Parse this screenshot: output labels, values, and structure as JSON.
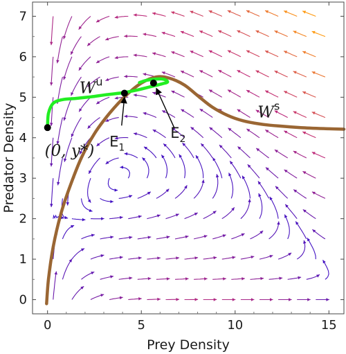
{
  "chart_data": {
    "type": "scatter",
    "xlabel": "Prey Density",
    "ylabel": "Predator Density",
    "xlim": [
      -0.8,
      15.8
    ],
    "ylim": [
      -0.35,
      7.35
    ],
    "x_ticks": [
      "0",
      "5",
      "10",
      "15"
    ],
    "y_ticks": [
      "0",
      "1",
      "2",
      "3",
      "4",
      "5",
      "6",
      "7"
    ],
    "grid": false,
    "colors": {
      "stable_manifold": "#9a6633",
      "unstable_manifold": "#22ee22",
      "field_low": "#3a10c8",
      "field_mid": "#c02a78",
      "field_high": "#ff9a10"
    },
    "points": [
      {
        "label": "(0, y*)",
        "x": 0,
        "y": 4.25
      },
      {
        "label": "E1",
        "x": 4.1,
        "y": 5.1
      },
      {
        "label": "E2",
        "x": 5.65,
        "y": 5.35
      }
    ],
    "series": [
      {
        "name": "W^s",
        "x": [
          -0.05,
          0.05,
          0.3,
          0.7,
          1.2,
          1.8,
          2.5,
          3.3,
          4.2,
          5.0,
          5.8,
          6.5,
          7.3,
          8.1,
          8.8,
          9.6,
          10.4,
          11.3,
          12.3,
          13.5,
          15.0,
          15.8
        ],
        "y": [
          -0.1,
          0.5,
          1.3,
          2.1,
          2.8,
          3.5,
          4.1,
          4.6,
          5.05,
          5.35,
          5.5,
          5.47,
          5.3,
          5.0,
          4.75,
          4.55,
          4.42,
          4.34,
          4.29,
          4.25,
          4.22,
          4.21
        ]
      },
      {
        "name": "W^u",
        "x": [
          0,
          0.05,
          0.3,
          0.8,
          1.5,
          2.3,
          3.1,
          4.0,
          4.8,
          5.5,
          6.1,
          6.4,
          6.1,
          5.3,
          4.9
        ],
        "y": [
          4.25,
          4.6,
          4.85,
          4.94,
          4.97,
          5.01,
          5.06,
          5.11,
          5.18,
          5.26,
          5.33,
          5.38,
          5.45,
          5.42,
          5.36
        ]
      }
    ],
    "annotations": {
      "wu_main": "W",
      "wu_sup": "u",
      "ws_main": "W",
      "ws_sup": "s",
      "e1_main": "E",
      "e1_sub": "1",
      "e2_main": "E",
      "e2_sub": "2",
      "eq_label": "(0, y*)"
    }
  }
}
